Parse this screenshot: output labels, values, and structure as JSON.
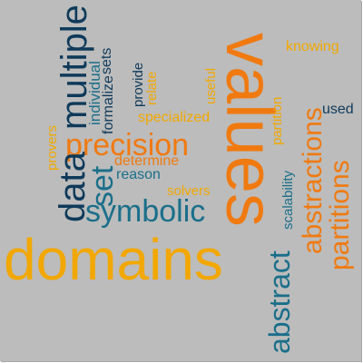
{
  "palette": {
    "orange": "#f07a10",
    "blue": "#1a6f8a",
    "navy": "#0f3a5a",
    "gold": "#f2a800",
    "background": "#bcbcbc"
  },
  "words": [
    {
      "text": "domains",
      "color": "#f2a800",
      "rotate": 0
    },
    {
      "text": "values",
      "color": "#f07a10",
      "rotate": 90
    },
    {
      "text": "abstractions",
      "color": "#f07a10",
      "rotate": -90
    },
    {
      "text": "abstract",
      "color": "#1a6f8a",
      "rotate": -90
    },
    {
      "text": "symbolic",
      "color": "#1a6f8a",
      "rotate": 0
    },
    {
      "text": "precision",
      "color": "#f07a10",
      "rotate": 0
    },
    {
      "text": "multiple",
      "color": "#0f3a5a",
      "rotate": -90
    },
    {
      "text": "data",
      "color": "#0f3a5a",
      "rotate": -90
    },
    {
      "text": "partitions",
      "color": "#f07a10",
      "rotate": -90
    },
    {
      "text": "set",
      "color": "#1a6f8a",
      "rotate": -90
    },
    {
      "text": "specialized",
      "color": "#f2a800",
      "rotate": 0
    },
    {
      "text": "determine",
      "color": "#f07a10",
      "rotate": 0
    },
    {
      "text": "reason",
      "color": "#1a6f8a",
      "rotate": 0
    },
    {
      "text": "solvers",
      "color": "#f2a800",
      "rotate": 0
    },
    {
      "text": "knowing",
      "color": "#f2a800",
      "rotate": 0
    },
    {
      "text": "used",
      "color": "#0f3a5a",
      "rotate": 0
    },
    {
      "text": "individual",
      "color": "#1a6f8a",
      "rotate": -90
    },
    {
      "text": "formalize",
      "color": "#0f3a5a",
      "rotate": -90
    },
    {
      "text": "sets",
      "color": "#0f3a5a",
      "rotate": -90
    },
    {
      "text": "provide",
      "color": "#0f3a5a",
      "rotate": -90
    },
    {
      "text": "relate",
      "color": "#f2a800",
      "rotate": -90
    },
    {
      "text": "useful",
      "color": "#f2a800",
      "rotate": -90
    },
    {
      "text": "partition",
      "color": "#f2a800",
      "rotate": -90
    },
    {
      "text": "provers",
      "color": "#f2a800",
      "rotate": -90
    },
    {
      "text": "scalability",
      "color": "#1a6f8a",
      "rotate": -90
    }
  ]
}
